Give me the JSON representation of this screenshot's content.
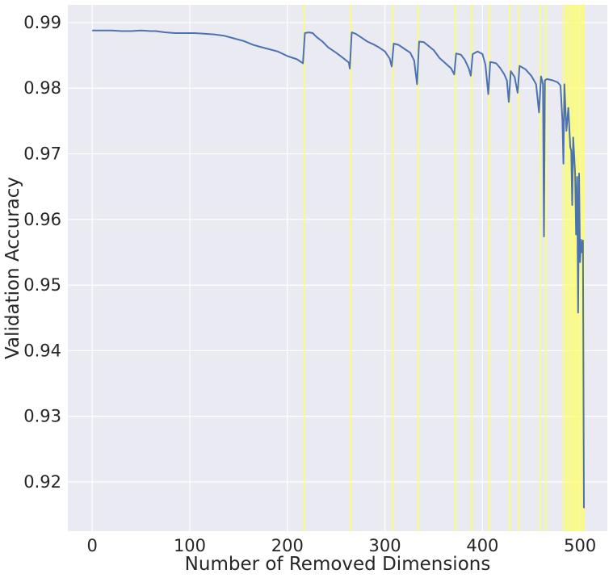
{
  "chart_data": {
    "type": "line",
    "title": "",
    "xlabel": "Number of Removed Dimensions",
    "ylabel": "Validation Accuracy",
    "xlim": [
      -25,
      528
    ],
    "ylim": [
      0.9125,
      0.9927
    ],
    "grid": true,
    "legend": "none",
    "x_ticks": [
      0,
      100,
      200,
      300,
      400,
      500
    ],
    "y_ticks": [
      0.92,
      0.93,
      0.94,
      0.95,
      0.96,
      0.97,
      0.98,
      0.99
    ],
    "x_tick_labels": [
      "0",
      "100",
      "200",
      "300",
      "400",
      "500"
    ],
    "y_tick_labels": [
      "0.92",
      "0.93",
      "0.94",
      "0.95",
      "0.96",
      "0.97",
      "0.98",
      "0.99"
    ],
    "colors": {
      "line": "#4c72b0",
      "marker_line": "#ffff66",
      "background": "#eaeaf2",
      "grid": "#ffffff"
    },
    "vertical_lines": [
      217,
      265,
      308,
      334,
      372,
      389,
      407,
      428,
      437,
      459,
      465,
      483,
      486,
      488,
      490,
      492,
      494,
      496,
      498,
      500,
      502,
      504
    ],
    "series": [
      {
        "points": [
          [
            0,
            0.9888
          ],
          [
            10,
            0.9888
          ],
          [
            20,
            0.9888
          ],
          [
            30,
            0.9887
          ],
          [
            40,
            0.9887
          ],
          [
            50,
            0.9888
          ],
          [
            60,
            0.9887
          ],
          [
            65,
            0.9887
          ],
          [
            75,
            0.9885
          ],
          [
            85,
            0.9884
          ],
          [
            95,
            0.9884
          ],
          [
            105,
            0.9884
          ],
          [
            115,
            0.9883
          ],
          [
            125,
            0.9882
          ],
          [
            135,
            0.988
          ],
          [
            145,
            0.9876
          ],
          [
            155,
            0.9872
          ],
          [
            165,
            0.9866
          ],
          [
            172,
            0.9863
          ],
          [
            180,
            0.986
          ],
          [
            190,
            0.9856
          ],
          [
            200,
            0.9849
          ],
          [
            210,
            0.9844
          ],
          [
            216,
            0.9838
          ],
          [
            218,
            0.9884
          ],
          [
            222,
            0.9885
          ],
          [
            226,
            0.9884
          ],
          [
            230,
            0.9878
          ],
          [
            236,
            0.9871
          ],
          [
            242,
            0.9862
          ],
          [
            250,
            0.9854
          ],
          [
            258,
            0.9845
          ],
          [
            263,
            0.9839
          ],
          [
            264,
            0.983
          ],
          [
            266,
            0.9885
          ],
          [
            270,
            0.9883
          ],
          [
            276,
            0.9877
          ],
          [
            282,
            0.9871
          ],
          [
            288,
            0.9867
          ],
          [
            294,
            0.9862
          ],
          [
            300,
            0.9856
          ],
          [
            305,
            0.9845
          ],
          [
            307,
            0.9833
          ],
          [
            309,
            0.9868
          ],
          [
            314,
            0.9866
          ],
          [
            320,
            0.986
          ],
          [
            326,
            0.9854
          ],
          [
            330,
            0.9842
          ],
          [
            333,
            0.9806
          ],
          [
            335,
            0.9871
          ],
          [
            340,
            0.987
          ],
          [
            345,
            0.9864
          ],
          [
            350,
            0.9858
          ],
          [
            356,
            0.9846
          ],
          [
            362,
            0.9838
          ],
          [
            368,
            0.983
          ],
          [
            371,
            0.9821
          ],
          [
            373,
            0.9853
          ],
          [
            378,
            0.9851
          ],
          [
            382,
            0.9843
          ],
          [
            386,
            0.983
          ],
          [
            388,
            0.9819
          ],
          [
            390,
            0.9852
          ],
          [
            395,
            0.9856
          ],
          [
            400,
            0.9852
          ],
          [
            403,
            0.9836
          ],
          [
            406,
            0.9791
          ],
          [
            408,
            0.984
          ],
          [
            414,
            0.9838
          ],
          [
            418,
            0.9831
          ],
          [
            422,
            0.9822
          ],
          [
            425,
            0.9812
          ],
          [
            427,
            0.9779
          ],
          [
            429,
            0.9826
          ],
          [
            433,
            0.9817
          ],
          [
            436,
            0.9793
          ],
          [
            438,
            0.9834
          ],
          [
            444,
            0.9829
          ],
          [
            450,
            0.9819
          ],
          [
            455,
            0.9806
          ],
          [
            458,
            0.9763
          ],
          [
            460,
            0.9818
          ],
          [
            462,
            0.9806
          ],
          [
            463,
            0.9574
          ],
          [
            464,
            0.9812
          ],
          [
            466,
            0.9814
          ],
          [
            472,
            0.9812
          ],
          [
            477,
            0.9809
          ],
          [
            480,
            0.9804
          ],
          [
            482,
            0.975
          ],
          [
            483,
            0.9685
          ],
          [
            484,
            0.9806
          ],
          [
            486,
            0.9735
          ],
          [
            488,
            0.977
          ],
          [
            490,
            0.971
          ],
          [
            491,
            0.9705
          ],
          [
            492,
            0.9622
          ],
          [
            493,
            0.9725
          ],
          [
            495,
            0.967
          ],
          [
            496,
            0.9577
          ],
          [
            497,
            0.9665
          ],
          [
            498,
            0.9458
          ],
          [
            499,
            0.967
          ],
          [
            500,
            0.9535
          ],
          [
            501,
            0.9569
          ],
          [
            502,
            0.955
          ],
          [
            503,
            0.9568
          ],
          [
            504,
            0.916
          ]
        ]
      }
    ]
  }
}
